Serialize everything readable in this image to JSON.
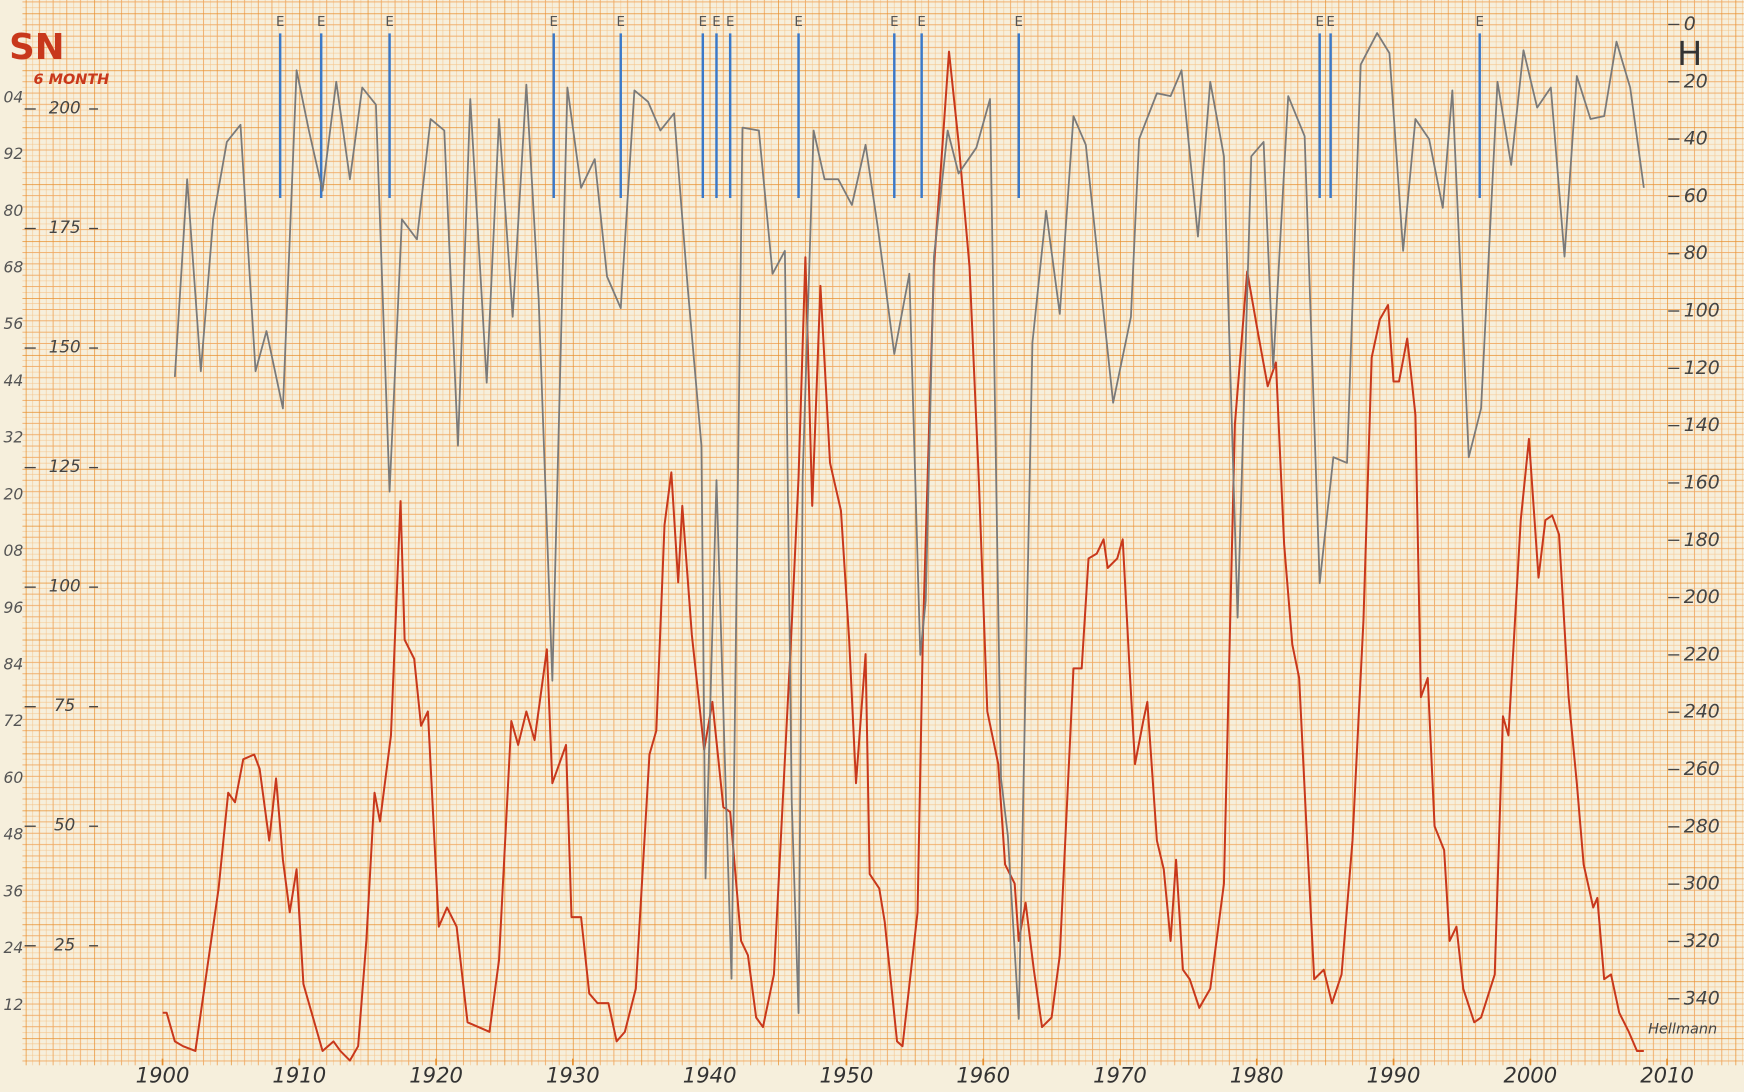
{
  "chart_data": {
    "type": "line",
    "subtitle": "6 MONTH",
    "annotation": "Hellmann",
    "xlim": [
      1900,
      2010
    ],
    "xticks": [
      1900,
      1910,
      1920,
      1930,
      1940,
      1950,
      1960,
      1970,
      1980,
      1990,
      2000,
      2010
    ],
    "ylim": [
      0,
      220
    ],
    "yticks": [
      25,
      50,
      75,
      100,
      125,
      150,
      175,
      200
    ],
    "y2lim": [
      0,
      360
    ],
    "y2ticks": [
      0,
      20,
      40,
      60,
      80,
      100,
      120,
      140,
      160,
      180,
      200,
      220,
      240,
      260,
      280,
      300,
      320,
      340
    ],
    "y2_inverted": true,
    "margin_labels": [
      "04",
      "92",
      "80",
      "68",
      "56",
      "44",
      "32",
      "20",
      "08",
      "96",
      "84",
      "72",
      "60",
      "48",
      "36",
      "24",
      "12"
    ],
    "series": [
      {
        "name": "SN",
        "color": "#c8381c",
        "x": [
          1900.0,
          1900.3,
          1900.9,
          1901.5,
          1902.4,
          1903.3,
          1904.1,
          1904.8,
          1905.3,
          1905.9,
          1906.7,
          1907.1,
          1907.8,
          1908.3,
          1908.8,
          1909.3,
          1909.8,
          1910.3,
          1911.1,
          1911.7,
          1912.5,
          1913.0,
          1913.7,
          1914.3,
          1914.9,
          1915.5,
          1915.9,
          1916.7,
          1917.4,
          1917.7,
          1918.4,
          1918.9,
          1919.4,
          1920.2,
          1920.8,
          1921.5,
          1922.3,
          1923.9,
          1924.6,
          1925.5,
          1926.0,
          1926.6,
          1927.2,
          1928.1,
          1928.5,
          1929.5,
          1929.9,
          1930.6,
          1931.2,
          1931.8,
          1932.6,
          1933.2,
          1933.8,
          1934.6,
          1935.6,
          1936.1,
          1936.7,
          1937.2,
          1937.7,
          1938.0,
          1938.7,
          1939.6,
          1940.2,
          1941.0,
          1941.5,
          1942.3,
          1942.8,
          1943.4,
          1943.9,
          1944.7,
          1946.0,
          1946.5,
          1947.0,
          1947.5,
          1948.1,
          1948.8,
          1949.6,
          1950.2,
          1950.7,
          1951.4,
          1951.7,
          1952.4,
          1952.8,
          1953.7,
          1954.1,
          1955.2,
          1955.6,
          1956.4,
          1957.5,
          1958.2,
          1959.0,
          1959.7,
          1960.3,
          1961.1,
          1961.6,
          1962.3,
          1962.6,
          1963.1,
          1963.7,
          1964.3,
          1965.0,
          1965.6,
          1966.6,
          1967.2,
          1967.7,
          1968.3,
          1968.8,
          1969.1,
          1969.8,
          1970.2,
          1970.7,
          1971.1,
          1971.7,
          1972.0,
          1972.7,
          1973.2,
          1973.7,
          1974.1,
          1974.6,
          1975.1,
          1975.8,
          1976.6,
          1977.6,
          1978.4,
          1979.3,
          1980.1,
          1980.8,
          1981.4,
          1982.0,
          1982.6,
          1983.1,
          1983.7,
          1984.2,
          1984.9,
          1985.5,
          1986.2,
          1987.0,
          1987.8,
          1988.4,
          1989.0,
          1989.6,
          1990.0,
          1990.4,
          1991.0,
          1991.6,
          1992.0,
          1992.5,
          1993.0,
          1993.7,
          1994.1,
          1994.6,
          1995.1,
          1995.9,
          1996.4,
          1997.4,
          1998.0,
          1998.4,
          1999.3,
          1999.9,
          2000.6,
          2001.1,
          2001.6,
          2002.1,
          2002.8,
          2003.4,
          2003.9,
          2004.6,
          2004.9,
          2005.4,
          2005.9,
          2006.5,
          2007.2,
          2007.8,
          2008.3
        ],
        "values": [
          11,
          11,
          5,
          4,
          3,
          21,
          37,
          57,
          55,
          64,
          65,
          62,
          47,
          60,
          43,
          32,
          41,
          17,
          9,
          3,
          5,
          3,
          1,
          4,
          26,
          57,
          51,
          69,
          118,
          89,
          85,
          71,
          74,
          29,
          33,
          29,
          9,
          7,
          22,
          72,
          67,
          74,
          68,
          87,
          59,
          67,
          31,
          31,
          15,
          13,
          13,
          5,
          7,
          16,
          65,
          70,
          113,
          124,
          101,
          117,
          90,
          66,
          76,
          54,
          53,
          26,
          23,
          10,
          8,
          19,
          92,
          123,
          169,
          117,
          163,
          126,
          116,
          89,
          59,
          86,
          40,
          37,
          30,
          5,
          4,
          32,
          91,
          167,
          212,
          193,
          167,
          121,
          74,
          63,
          42,
          38,
          26,
          34,
          20,
          8,
          10,
          23,
          83,
          83,
          106,
          107,
          110,
          104,
          106,
          110,
          83,
          63,
          72,
          76,
          47,
          41,
          26,
          43,
          20,
          18,
          12,
          16,
          38,
          134,
          166,
          153,
          142,
          147,
          109,
          88,
          81,
          46,
          18,
          20,
          13,
          19,
          47,
          93,
          148,
          156,
          159,
          143,
          143,
          152,
          136,
          77,
          81,
          50,
          45,
          26,
          29,
          16,
          9,
          10,
          19,
          73,
          69,
          114,
          131,
          102,
          114,
          115,
          111,
          77,
          59,
          42,
          33,
          35,
          18,
          19,
          11,
          7,
          3,
          3
        ]
      },
      {
        "name": "H",
        "color": "#7a7a7a",
        "axis": "y2",
        "x": [
          1900.9,
          1901.8,
          1902.8,
          1903.7,
          1904.7,
          1905.7,
          1906.8,
          1907.6,
          1908.8,
          1909.8,
          1910.7,
          1911.7,
          1912.7,
          1913.7,
          1914.6,
          1915.6,
          1916.6,
          1917.5,
          1918.6,
          1919.6,
          1920.6,
          1921.6,
          1922.5,
          1923.7,
          1924.6,
          1925.6,
          1926.6,
          1927.5,
          1928.5,
          1929.6,
          1930.6,
          1931.6,
          1932.5,
          1933.5,
          1934.5,
          1935.5,
          1936.4,
          1937.4,
          1938.4,
          1939.4,
          1939.7,
          1940.5,
          1941.2,
          1941.6,
          1942.4,
          1943.6,
          1944.6,
          1945.5,
          1946.0,
          1946.5,
          1946.8,
          1947.6,
          1948.4,
          1949.4,
          1950.4,
          1951.4,
          1952.3,
          1953.5,
          1954.6,
          1955.4,
          1955.8,
          1956.4,
          1957.4,
          1958.2,
          1959.5,
          1960.5,
          1961.3,
          1961.8,
          1962.6,
          1963.6,
          1964.6,
          1965.6,
          1966.6,
          1967.5,
          1969.5,
          1970.8,
          1971.4,
          1972.7,
          1973.7,
          1974.5,
          1975.7,
          1976.6,
          1977.6,
          1978.6,
          1979.6,
          1980.5,
          1981.2,
          1982.3,
          1983.5,
          1984.6,
          1985.6,
          1986.6,
          1987.6,
          1988.8,
          1989.7,
          1990.7,
          1991.6,
          1992.6,
          1993.6,
          1994.3,
          1995.5,
          1996.4,
          1997.6,
          1998.6,
          1999.5,
          2000.5,
          2001.5,
          2002.5,
          2003.4,
          2004.4,
          2005.4,
          2006.3,
          2007.3,
          2008.3
        ],
        "values": [
          123,
          54,
          121,
          68,
          41,
          35,
          121,
          107,
          134,
          16,
          37,
          58,
          20,
          54,
          22,
          28,
          163,
          68,
          75,
          33,
          37,
          147,
          26,
          125,
          33,
          102,
          21,
          96,
          229,
          22,
          57,
          47,
          88,
          99,
          23,
          27,
          37,
          31,
          92,
          147,
          298,
          159,
          271,
          333,
          36,
          37,
          87,
          79,
          271,
          345,
          158,
          37,
          54,
          54,
          63,
          42,
          71,
          115,
          87,
          220,
          201,
          81,
          37,
          52,
          43,
          26,
          263,
          283,
          347,
          111,
          65,
          101,
          32,
          42,
          132,
          102,
          40,
          24,
          25,
          16,
          74,
          20,
          46,
          207,
          46,
          41,
          120,
          25,
          39,
          195,
          151,
          153,
          14,
          3,
          10,
          79,
          33,
          40,
          64,
          23,
          151,
          134,
          20,
          49,
          9,
          29,
          22,
          81,
          18,
          33,
          32,
          6,
          22,
          57
        ]
      }
    ],
    "event_color": "#3a78c8",
    "events": [
      {
        "x": 1908.6,
        "label": "E"
      },
      {
        "x": 1911.6,
        "label": "E"
      },
      {
        "x": 1916.6,
        "label": "E"
      },
      {
        "x": 1928.6,
        "label": "E"
      },
      {
        "x": 1933.5,
        "label": "E"
      },
      {
        "x": 1939.5,
        "label": "E"
      },
      {
        "x": 1940.5,
        "label": "E"
      },
      {
        "x": 1941.5,
        "label": "E"
      },
      {
        "x": 1946.5,
        "label": "E"
      },
      {
        "x": 1953.5,
        "label": "E"
      },
      {
        "x": 1955.5,
        "label": "E"
      },
      {
        "x": 1962.6,
        "label": "E"
      },
      {
        "x": 1984.6,
        "label": "E"
      },
      {
        "x": 1985.4,
        "label": "E"
      },
      {
        "x": 1996.3,
        "label": "E"
      }
    ]
  }
}
